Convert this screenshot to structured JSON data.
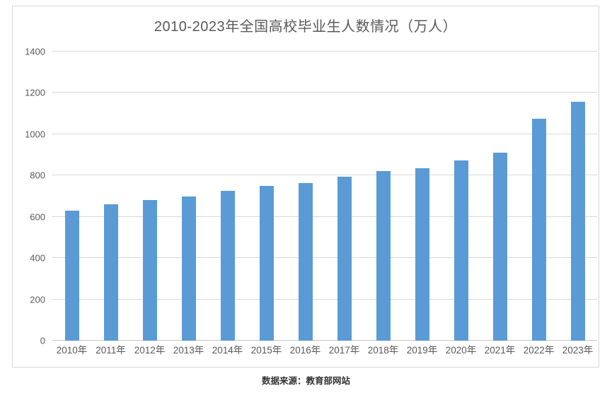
{
  "page": {
    "source_note": "数据来源：教育部网站"
  },
  "colors": {
    "bar": "#5B9BD5",
    "gridline": "#D9D9D9",
    "axis_line": "#C6C6C6",
    "text": "#595959",
    "border": "#D9D9D9",
    "source_text": "#333333"
  },
  "chart_data": {
    "type": "bar",
    "title": "2010-2023年全国高校毕业生人数情况（万人）",
    "categories": [
      "2010年",
      "2011年",
      "2012年",
      "2013年",
      "2014年",
      "2015年",
      "2016年",
      "2017年",
      "2018年",
      "2019年",
      "2020年",
      "2021年",
      "2022年",
      "2023年"
    ],
    "values": [
      631,
      660,
      680,
      699,
      727,
      749,
      765,
      795,
      820,
      834,
      874,
      909,
      1076,
      1158
    ],
    "xlabel": "",
    "ylabel": "",
    "ylim": [
      0,
      1400
    ],
    "ytick_step": 200,
    "yticks": [
      0,
      200,
      400,
      600,
      800,
      1000,
      1200,
      1400
    ],
    "grid": true,
    "legend": false,
    "bar_color": "#5B9BD5"
  }
}
